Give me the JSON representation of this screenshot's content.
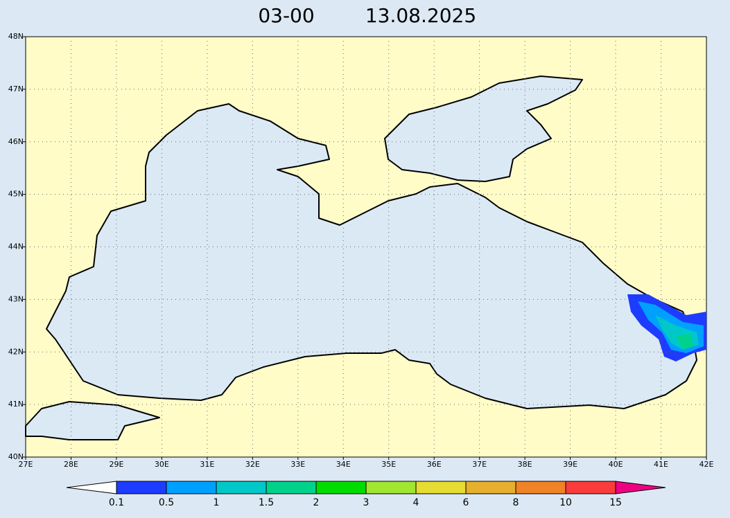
{
  "title": {
    "time": "03-00",
    "date": "13.08.2025"
  },
  "lon_labels": [
    "27E",
    "28E",
    "29E",
    "30E",
    "31E",
    "32E",
    "33E",
    "34E",
    "35E",
    "36E",
    "37E",
    "38E",
    "39E",
    "40E",
    "41E",
    "42E"
  ],
  "lat_labels": [
    "40N",
    "41N",
    "42N",
    "43N",
    "44N",
    "45N",
    "46N",
    "47N",
    "48N"
  ],
  "colorbar": {
    "labels": [
      "0.1",
      "0.5",
      "1",
      "1.5",
      "2",
      "3",
      "4",
      "6",
      "8",
      "10",
      "15"
    ],
    "colors": [
      "#1e3cff",
      "#00a0ff",
      "#00c8c8",
      "#00d28c",
      "#00dc00",
      "#a0e632",
      "#e6dc32",
      "#e6af2d",
      "#f08228",
      "#fa3c3c",
      "#f00082"
    ]
  }
}
